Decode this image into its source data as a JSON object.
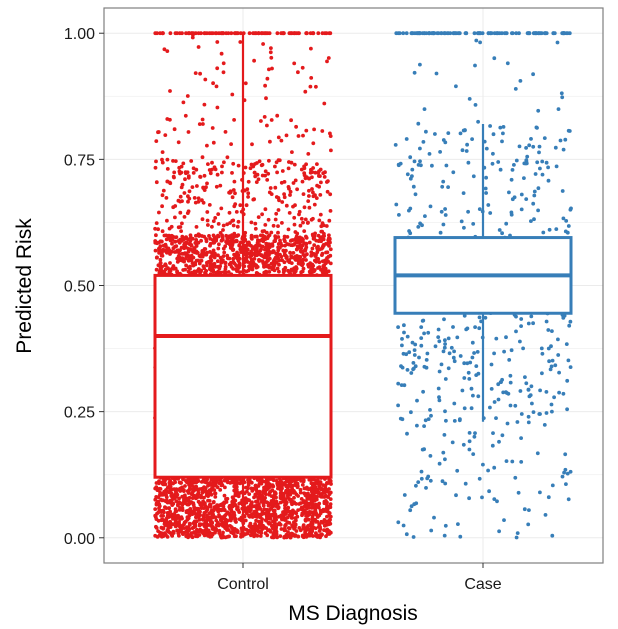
{
  "chart_data": {
    "type": "boxplot-jitter",
    "title": "",
    "xlabel": "MS Diagnosis",
    "ylabel": "Predicted Risk",
    "ylim": [
      -0.05,
      1.05
    ],
    "yticks": [
      0.0,
      0.25,
      0.5,
      0.75,
      1.0
    ],
    "ytick_labels": [
      "0.00",
      "0.25",
      "0.50",
      "0.75",
      "1.00"
    ],
    "categories": [
      "Control",
      "Case"
    ],
    "grid": true,
    "legend": "none",
    "boxes": [
      {
        "category": "Control",
        "color": "#e41a1c",
        "whisker_low": 0.0,
        "q1": 0.12,
        "median": 0.4,
        "q3": 0.52,
        "whisker_high": 1.0
      },
      {
        "category": "Case",
        "color": "#377eb8",
        "whisker_low": 0.23,
        "q1": 0.445,
        "median": 0.52,
        "q3": 0.595,
        "whisker_high": 0.82
      }
    ]
  }
}
